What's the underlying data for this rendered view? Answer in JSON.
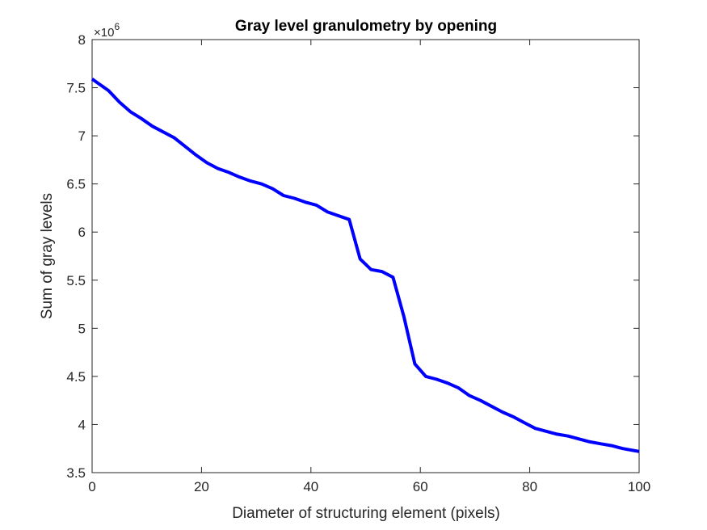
{
  "chart_data": {
    "type": "line",
    "title": "Gray level granulometry by opening",
    "xlabel": "Diameter of structuring element (pixels)",
    "ylabel": "Sum of gray levels",
    "y_exponent_base": "×10",
    "y_exponent_power": "6",
    "xlim": [
      0,
      100
    ],
    "ylim": [
      3.5,
      8
    ],
    "x_ticks": [
      0,
      20,
      40,
      60,
      80,
      100
    ],
    "x_tick_labels": [
      "0",
      "20",
      "40",
      "60",
      "80",
      "100"
    ],
    "y_ticks": [
      3.5,
      4,
      4.5,
      5,
      5.5,
      6,
      6.5,
      7,
      7.5,
      8
    ],
    "y_tick_labels": [
      "3.5",
      "4",
      "4.5",
      "5",
      "5.5",
      "6",
      "6.5",
      "7",
      "7.5",
      "8"
    ],
    "grid": false,
    "line_color": "#0000FF",
    "series": [
      {
        "x": [
          0,
          1,
          3,
          5,
          7,
          9,
          11,
          13,
          15,
          17,
          19,
          21,
          23,
          25,
          27,
          29,
          31,
          33,
          35,
          37,
          39,
          41,
          43,
          45,
          47,
          49,
          51,
          53,
          55,
          57,
          59,
          61,
          63,
          65,
          67,
          69,
          71,
          73,
          75,
          77,
          79,
          81,
          83,
          85,
          87,
          89,
          91,
          93,
          95,
          97,
          99,
          100
        ],
        "y": [
          7.59,
          7.55,
          7.47,
          7.35,
          7.25,
          7.18,
          7.1,
          7.04,
          6.98,
          6.89,
          6.8,
          6.72,
          6.66,
          6.62,
          6.57,
          6.53,
          6.5,
          6.45,
          6.38,
          6.35,
          6.31,
          6.28,
          6.21,
          6.17,
          6.13,
          5.72,
          5.61,
          5.59,
          5.53,
          5.12,
          4.63,
          4.5,
          4.47,
          4.43,
          4.38,
          4.3,
          4.25,
          4.19,
          4.13,
          4.08,
          4.02,
          3.96,
          3.93,
          3.9,
          3.88,
          3.85,
          3.82,
          3.8,
          3.78,
          3.75,
          3.73,
          3.72
        ]
      }
    ]
  }
}
